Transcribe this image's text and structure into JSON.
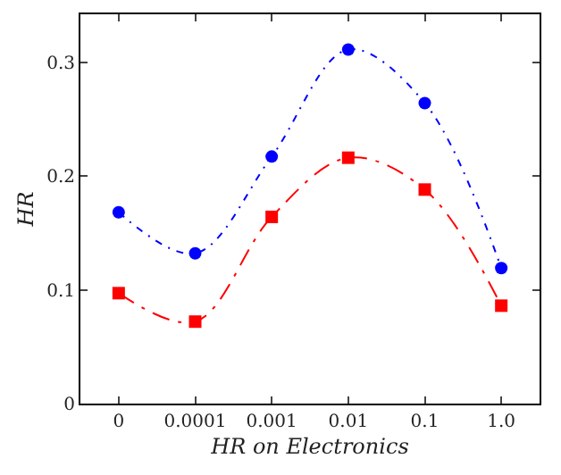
{
  "chart_data": {
    "type": "line",
    "xlabel": "HR on Electronics",
    "ylabel": "HR",
    "categories": [
      "0",
      "0.0001",
      "0.001",
      "0.01",
      "0.1",
      "1.0"
    ],
    "series": [
      {
        "color": "#0000ff",
        "values": [
          0.168,
          0.132,
          0.217,
          0.311,
          0.264,
          0.119
        ],
        "marker": "circle",
        "line_style": "dotted"
      },
      {
        "color": "#ff0000",
        "values": [
          0.097,
          0.072,
          0.164,
          0.216,
          0.188,
          0.086
        ],
        "marker": "square",
        "line_style": "dashed"
      }
    ],
    "ylim": [
      0,
      0.342
    ],
    "yticks": [
      0,
      0.1,
      0.2,
      0.3
    ]
  }
}
